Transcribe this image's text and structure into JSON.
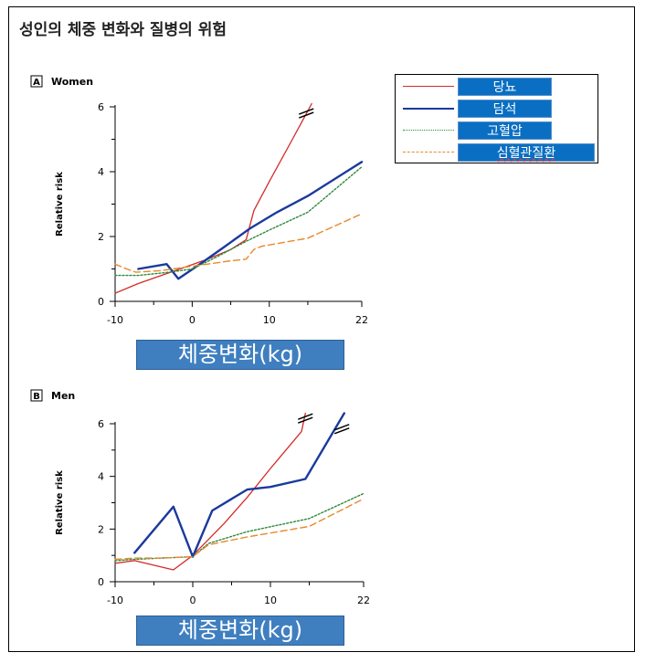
{
  "page_title": "성인의 체중 변화와 질병의 위험",
  "legend": {
    "items": [
      {
        "label": "당뇨",
        "color": "#d42a2a",
        "style": "solid"
      },
      {
        "label": "담석",
        "color": "#1a3a9c",
        "style": "solid"
      },
      {
        "label": "고혈압",
        "color": "#2e8a3a",
        "style": "dotted"
      },
      {
        "label": "심혈관질환",
        "color": "#e8892b",
        "style": "dashed"
      }
    ]
  },
  "x_label_box": "체중변화(kg)",
  "chart_data": [
    {
      "type": "line",
      "panel_label": "A",
      "title": "Women",
      "xlabel": "체중변화(kg)",
      "ylabel": "Relative risk",
      "xlim": [
        -10,
        22
      ],
      "ylim": [
        0,
        6
      ],
      "x_ticks": [
        "-10",
        "0",
        "10",
        "22"
      ],
      "y_ticks": [
        "0",
        "2",
        "4",
        "6"
      ],
      "break_marks": [
        {
          "series": "당뇨",
          "x": 14.8,
          "y": 5.8
        }
      ],
      "series": [
        {
          "name": "당뇨",
          "x": [
            -10,
            -7,
            -4,
            -1,
            2,
            5,
            7,
            8,
            10,
            13,
            15.5
          ],
          "y": [
            0.25,
            0.55,
            0.8,
            1.05,
            1.3,
            1.6,
            1.9,
            2.8,
            3.7,
            5.0,
            6.1
          ]
        },
        {
          "name": "담석",
          "x": [
            -7,
            -3.3,
            -1.8,
            1,
            4,
            7.5,
            11,
            15,
            22
          ],
          "y": [
            1.0,
            1.15,
            0.7,
            1.15,
            1.65,
            2.25,
            2.75,
            3.25,
            4.3
          ]
        },
        {
          "name": "고혈압",
          "x": [
            -10,
            -7,
            -3,
            0,
            3,
            7,
            10,
            15,
            22
          ],
          "y": [
            0.8,
            0.8,
            0.9,
            1.0,
            1.35,
            1.85,
            2.2,
            2.75,
            4.15
          ]
        },
        {
          "name": "심혈관질환",
          "x": [
            -10,
            -8.5,
            -7.3,
            -4,
            -1,
            2,
            5,
            7,
            8,
            9,
            15,
            22
          ],
          "y": [
            1.15,
            1.0,
            0.9,
            0.95,
            1.05,
            1.15,
            1.25,
            1.3,
            1.6,
            1.7,
            1.95,
            2.7
          ]
        }
      ]
    },
    {
      "type": "line",
      "panel_label": "B",
      "title": "Men",
      "xlabel": "체중변화(kg)",
      "ylabel": "Relative risk",
      "xlim": [
        -10,
        22
      ],
      "ylim": [
        0,
        6
      ],
      "x_ticks": [
        "-10",
        "0",
        "10",
        "22"
      ],
      "y_ticks": [
        "0",
        "2",
        "4",
        "6"
      ],
      "break_marks": [
        {
          "series": "당뇨",
          "x": 14.5,
          "y": 6.2
        },
        {
          "series": "담석",
          "x": 19.2,
          "y": 5.8
        }
      ],
      "series": [
        {
          "name": "당뇨",
          "x": [
            -10,
            -7.5,
            -2.5,
            0,
            2,
            4,
            7,
            10,
            14,
            14.5
          ],
          "y": [
            0.7,
            0.8,
            0.45,
            1.0,
            1.6,
            2.2,
            3.2,
            4.3,
            5.7,
            6.4
          ]
        },
        {
          "name": "담석",
          "x": [
            -7.5,
            -2.5,
            0,
            2.5,
            7,
            10,
            14.5,
            19.5
          ],
          "y": [
            1.1,
            2.85,
            0.95,
            2.7,
            3.5,
            3.6,
            3.9,
            6.4
          ]
        },
        {
          "name": "고혈압",
          "x": [
            -10,
            -7.5,
            -4,
            0,
            2,
            7,
            15,
            22
          ],
          "y": [
            0.8,
            0.85,
            0.9,
            0.95,
            1.45,
            1.9,
            2.4,
            3.35
          ]
        },
        {
          "name": "심혈관질환",
          "x": [
            -10,
            -7.5,
            -4,
            0,
            2,
            7,
            15,
            22
          ],
          "y": [
            0.85,
            0.9,
            0.9,
            0.95,
            1.4,
            1.7,
            2.1,
            3.15
          ]
        }
      ]
    }
  ]
}
